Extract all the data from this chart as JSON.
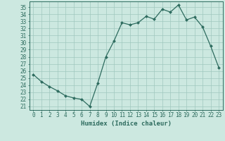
{
  "x": [
    0,
    1,
    2,
    3,
    4,
    5,
    6,
    7,
    8,
    9,
    10,
    11,
    12,
    13,
    14,
    15,
    16,
    17,
    18,
    19,
    20,
    21,
    22,
    23
  ],
  "y": [
    25.5,
    24.5,
    23.8,
    23.2,
    22.5,
    22.2,
    22.0,
    21.0,
    24.3,
    28.0,
    30.2,
    32.8,
    32.5,
    32.8,
    33.7,
    33.3,
    34.7,
    34.3,
    35.3,
    33.2,
    33.6,
    32.2,
    29.5,
    26.5
  ],
  "title": "",
  "xlabel": "Humidex (Indice chaleur)",
  "ylabel": "",
  "xlim": [
    -0.5,
    23.5
  ],
  "ylim": [
    20.5,
    35.8
  ],
  "yticks": [
    21,
    22,
    23,
    24,
    25,
    26,
    27,
    28,
    29,
    30,
    31,
    32,
    33,
    34,
    35
  ],
  "xticks": [
    0,
    1,
    2,
    3,
    4,
    5,
    6,
    7,
    8,
    9,
    10,
    11,
    12,
    13,
    14,
    15,
    16,
    17,
    18,
    19,
    20,
    21,
    22,
    23
  ],
  "line_color": "#2d6b5e",
  "marker_color": "#2d6b5e",
  "bg_color": "#cce8e0",
  "grid_color": "#a0c8be",
  "axes_color": "#2d6b5e",
  "tick_label_fontsize": 5.5,
  "xlabel_fontsize": 6.5
}
